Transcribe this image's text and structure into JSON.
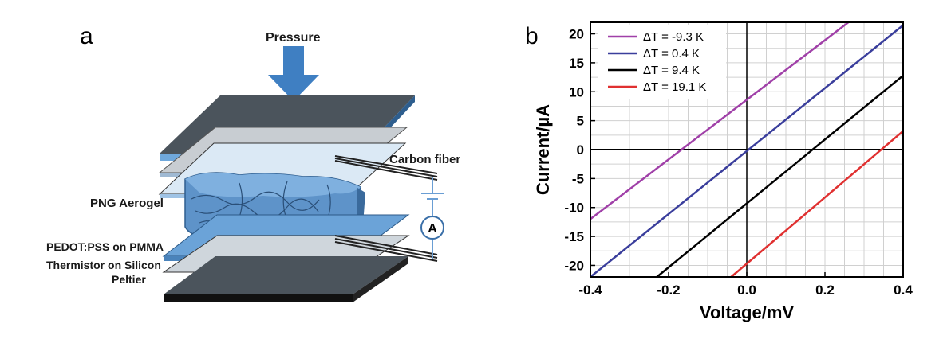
{
  "panel_a": {
    "label": "a",
    "labels": {
      "pressure": "Pressure",
      "carbon_fiber": "Carbon fiber",
      "png_aerogel": "PNG Aerogel",
      "pedot": "PEDOT:PSS on PMMA",
      "thermistor": "Thermistor on Silicon",
      "peltier": "Peltier",
      "ammeter": "A"
    },
    "colors": {
      "blue": "#5b9bd5",
      "dark": "#4a5560",
      "light": "#d9e7f2"
    }
  },
  "panel_b": {
    "label": "b"
  },
  "chart_data": {
    "type": "line",
    "xlabel": "Voltage/mV",
    "ylabel": "Current/µA",
    "xlim": [
      -0.4,
      0.4
    ],
    "ylim": [
      -22,
      22
    ],
    "xticks": [
      -0.4,
      -0.2,
      0.0,
      0.2,
      0.4
    ],
    "xtick_labels": [
      "-0.4",
      "-0.2",
      "0.0",
      "0.2",
      "0.4"
    ],
    "yticks": [
      -20,
      -15,
      -10,
      -5,
      0,
      5,
      10,
      15,
      20
    ],
    "ytick_labels": [
      "-20",
      "-15",
      "-10",
      "-5",
      "0",
      "5",
      "10",
      "15",
      "20"
    ],
    "grid": true,
    "legend_position": "top-left",
    "series": [
      {
        "name": "ΔT = -9.3 K",
        "color": "#a040a8",
        "x": [
          -0.4,
          0.26
        ],
        "y": [
          -12.0,
          22.0
        ]
      },
      {
        "name": "ΔT = 0.4 K",
        "color": "#3a3e9c",
        "x": [
          -0.4,
          0.4
        ],
        "y": [
          -22.0,
          21.5
        ]
      },
      {
        "name": "ΔT = 9.4 K",
        "color": "#000000",
        "x": [
          -0.23,
          0.4
        ],
        "y": [
          -22.0,
          12.8
        ]
      },
      {
        "name": "ΔT = 19.1 K",
        "color": "#e03030",
        "x": [
          -0.04,
          0.4
        ],
        "y": [
          -22.0,
          3.2
        ]
      }
    ],
    "reference_lines": {
      "x0": 0,
      "y0": 0
    }
  }
}
